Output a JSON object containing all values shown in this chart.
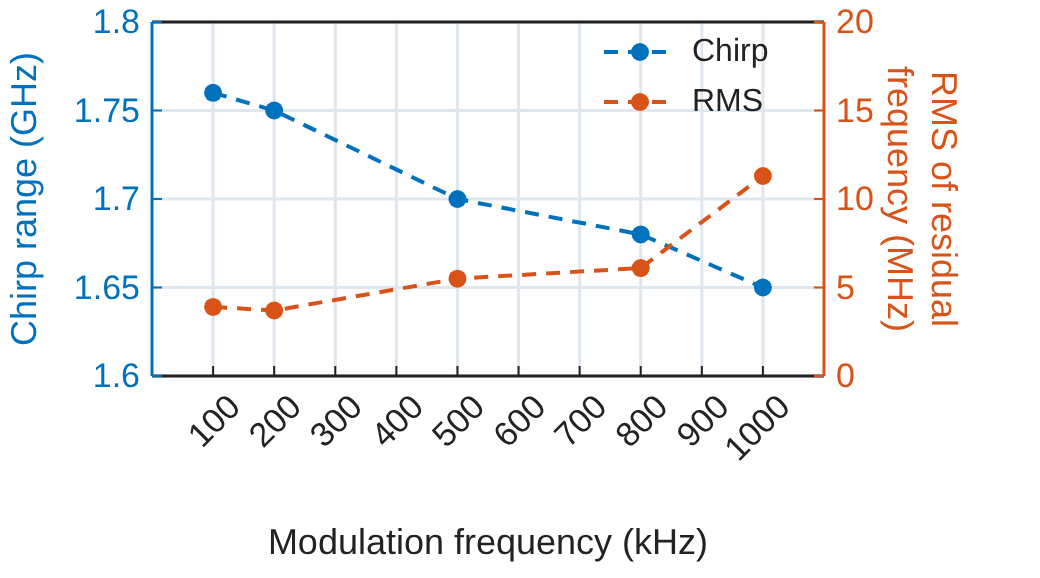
{
  "chart_data": {
    "type": "line",
    "xlabel": "Modulation frequency (kHz)",
    "ylabel": "Chirp range (GHz)",
    "y2label": "RMS of residual frequency (MHz)",
    "x": [
      100,
      200,
      500,
      800,
      1000
    ],
    "series": [
      {
        "name": "Chirp",
        "color": "#0072bd",
        "values": [
          1.76,
          1.75,
          1.7,
          1.68,
          1.65
        ]
      },
      {
        "name": "RMS",
        "color": "#d95319",
        "axis": "y2",
        "values": [
          3.9,
          3.7,
          5.5,
          6.1,
          11.3
        ]
      }
    ],
    "xlim": [
      0,
      1100
    ],
    "xticks": [
      100,
      200,
      300,
      400,
      500,
      600,
      700,
      800,
      900,
      1000
    ],
    "ylim": [
      1.6,
      1.8
    ],
    "yticks": [
      1.6,
      1.65,
      1.7,
      1.75,
      1.8
    ],
    "y2lim": [
      0,
      20
    ],
    "y2ticks": [
      0,
      5,
      10,
      15,
      20
    ],
    "grid": true,
    "legend": "top right",
    "marker": "circle",
    "line_style": "dashed"
  }
}
